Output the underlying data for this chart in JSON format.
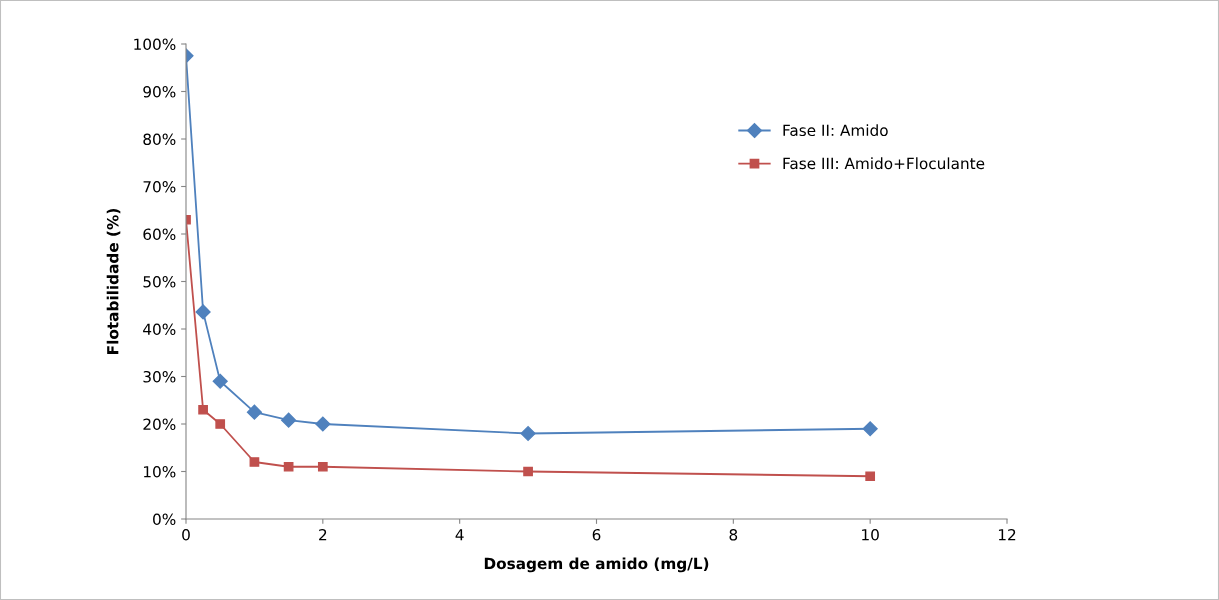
{
  "chart_data": {
    "type": "line",
    "xlabel": "Dosagem de amido (mg/L)",
    "ylabel": "Flotabilidade (%)",
    "xlim": [
      0,
      12
    ],
    "xticks": [
      0,
      2,
      4,
      6,
      8,
      10,
      12
    ],
    "ylim": [
      0,
      100
    ],
    "yticks": [
      {
        "value": 0,
        "label": "0%"
      },
      {
        "value": 10,
        "label": "10%"
      },
      {
        "value": 20,
        "label": "20%"
      },
      {
        "value": 30,
        "label": "30%"
      },
      {
        "value": 40,
        "label": "40%"
      },
      {
        "value": 50,
        "label": "50%"
      },
      {
        "value": 60,
        "label": "60%"
      },
      {
        "value": 70,
        "label": "70%"
      },
      {
        "value": 80,
        "label": "80%"
      },
      {
        "value": 90,
        "label": "90%"
      },
      {
        "value": 100,
        "label": "100%"
      }
    ],
    "x": [
      0,
      0.25,
      0.5,
      1,
      1.5,
      2,
      5,
      10
    ],
    "series": [
      {
        "name": "Fase II: Amido",
        "color": "#4f81bd",
        "marker": "diamond",
        "values": [
          97.5,
          43.6,
          29,
          22.5,
          20.8,
          20,
          18,
          19
        ]
      },
      {
        "name": "Fase III: Amido+Floculante",
        "color": "#c0504d",
        "marker": "square",
        "values": [
          63,
          23,
          20,
          12,
          11,
          11,
          10,
          9
        ]
      }
    ],
    "grid": false,
    "legend": "top right",
    "line_style": "solid"
  }
}
